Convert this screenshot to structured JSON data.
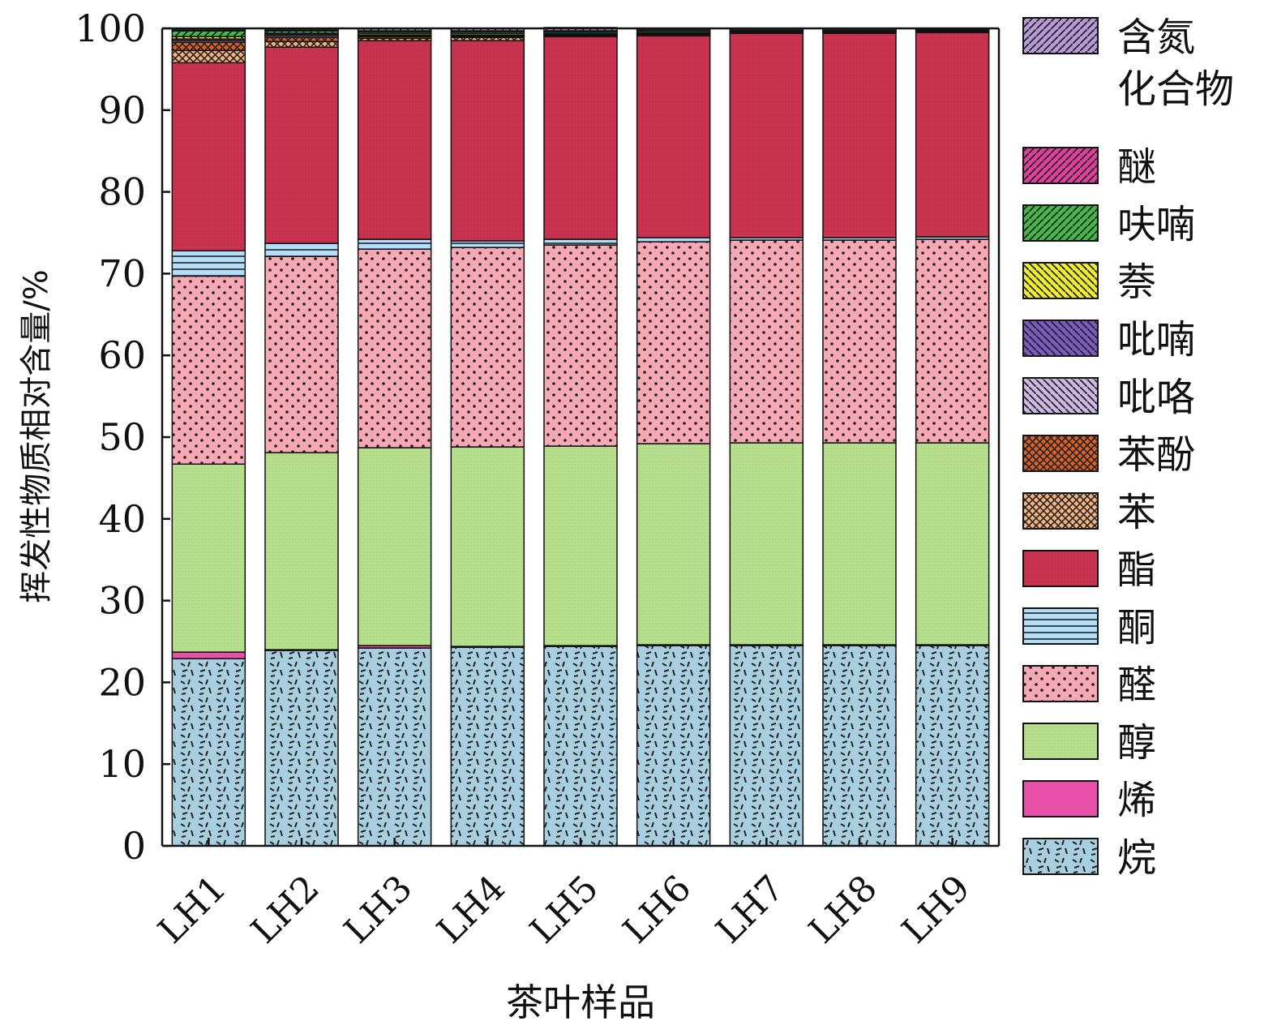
{
  "chart_data": {
    "type": "bar",
    "stacked": true,
    "ylabel": "挥发性物质相对含量/%",
    "xlabel": "茶叶样品",
    "ylim": [
      0,
      100
    ],
    "yticks": [
      0,
      10,
      20,
      30,
      40,
      50,
      60,
      70,
      80,
      90,
      100
    ],
    "categories": [
      "LH1",
      "LH2",
      "LH3",
      "LH4",
      "LH5",
      "LH6",
      "LH7",
      "LH8",
      "LH9"
    ],
    "legend_position": "right",
    "series": [
      {
        "name": "烷",
        "color": "#a8cfe0",
        "values": [
          22.9,
          23.9,
          24.2,
          24.3,
          24.4,
          24.5,
          24.5,
          24.5,
          24.5
        ]
      },
      {
        "name": "烯",
        "color": "#e84fa8",
        "values": [
          0.8,
          0.1,
          0.3,
          0.1,
          0.1,
          0.1,
          0.1,
          0.1,
          0.1
        ]
      },
      {
        "name": "醇",
        "color": "#b7e08e",
        "values": [
          23.0,
          24.1,
          24.2,
          24.4,
          24.4,
          24.6,
          24.7,
          24.7,
          24.7
        ]
      },
      {
        "name": "醛",
        "color": "#f6a8b5",
        "values": [
          23.0,
          24.0,
          24.3,
          24.4,
          24.6,
          24.7,
          24.8,
          24.8,
          24.9
        ]
      },
      {
        "name": "酮",
        "color": "#b3defa",
        "values": [
          3.1,
          1.6,
          1.2,
          0.8,
          0.7,
          0.5,
          0.3,
          0.3,
          0.3
        ]
      },
      {
        "name": "酯",
        "color": "#c9334f",
        "values": [
          23.0,
          24.0,
          24.3,
          24.5,
          24.8,
          24.7,
          25.0,
          25.0,
          25.0
        ]
      },
      {
        "name": "苯",
        "color": "#f5b27a",
        "values": [
          1.5,
          0.7,
          0.3,
          0.4,
          0.1,
          0.1,
          0.0,
          0.0,
          0.0
        ]
      },
      {
        "name": "苯酚",
        "color": "#d95f27",
        "values": [
          1.0,
          0.5,
          0.2,
          0.1,
          0.0,
          0.0,
          0.0,
          0.0,
          0.0
        ]
      },
      {
        "name": "吡咯",
        "color": "#cdb7e4",
        "values": [
          0.2,
          0.2,
          0.1,
          0.1,
          0.1,
          0.1,
          0.1,
          0.1,
          0.1
        ]
      },
      {
        "name": "吡喃",
        "color": "#7a5bbf",
        "values": [
          0.2,
          0.2,
          0.1,
          0.1,
          0.1,
          0.1,
          0.1,
          0.1,
          0.1
        ]
      },
      {
        "name": "萘",
        "color": "#f0ee30",
        "values": [
          0.3,
          0.1,
          0.2,
          0.2,
          0.1,
          0.1,
          0.0,
          0.0,
          0.0
        ]
      },
      {
        "name": "呋喃",
        "color": "#46b84a",
        "values": [
          0.7,
          0.3,
          0.2,
          0.2,
          0.2,
          0.2,
          0.1,
          0.1,
          0.1
        ]
      },
      {
        "name": "醚",
        "color": "#e0409a",
        "values": [
          0.1,
          0.1,
          0.1,
          0.1,
          0.1,
          0.1,
          0.1,
          0.1,
          0.1
        ]
      },
      {
        "name": "含氮化合物",
        "color": "#b79ad8",
        "values": [
          0.2,
          0.2,
          0.3,
          0.3,
          0.4,
          0.2,
          0.2,
          0.2,
          0.1
        ]
      }
    ]
  }
}
